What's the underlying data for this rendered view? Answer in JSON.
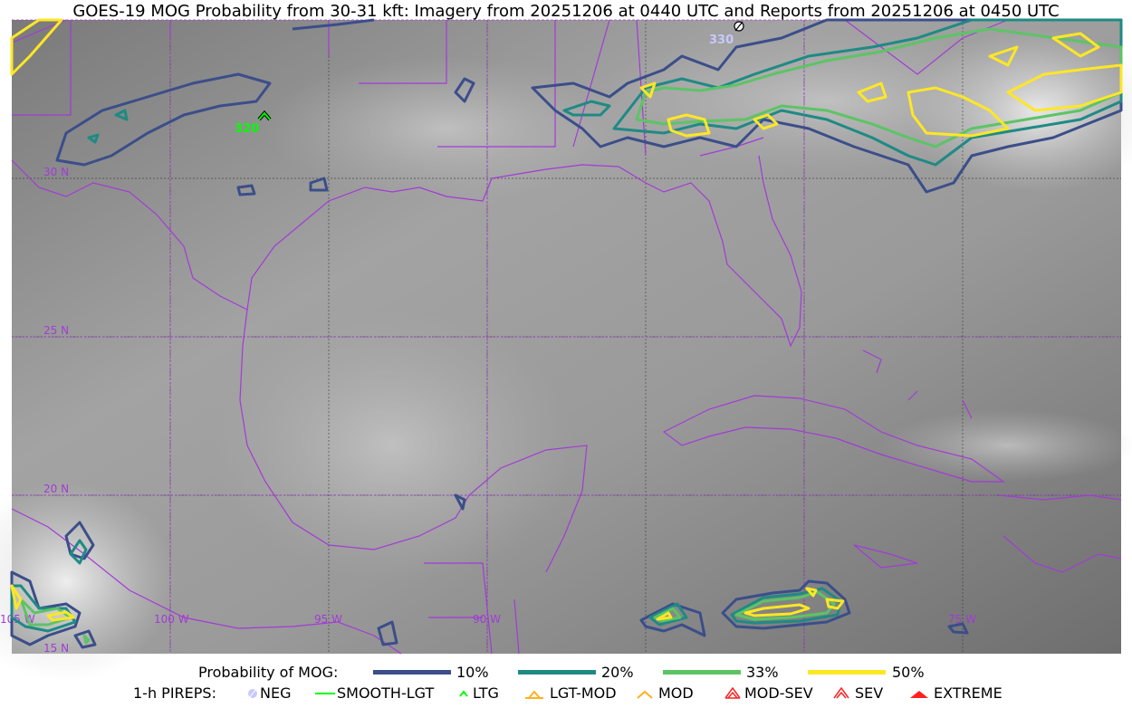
{
  "title": "GOES-19 MOG Probability from 30-31 kft: Imagery from 20251206 at 0440 UTC and Reports from 20251206 at 0450 UTC",
  "map": {
    "lat_labels": [
      "30 N",
      "25 N",
      "20 N",
      "15 N"
    ],
    "lon_labels": [
      "105 W",
      "100 W",
      "95 W",
      "90 W",
      "75 W"
    ],
    "boundary_color": "#a23bd6",
    "pireps": [
      {
        "type": "LTG",
        "altitude": "320",
        "color": "#00ff00"
      },
      {
        "type": "NEG",
        "altitude": "330",
        "color": "#c8c8ff"
      }
    ]
  },
  "legend": {
    "prob_label": "Probability of MOG:",
    "prob_levels": [
      {
        "label": "10%",
        "color": "#3b4e8a"
      },
      {
        "label": "20%",
        "color": "#1f8a84"
      },
      {
        "label": "33%",
        "color": "#5cc465"
      },
      {
        "label": "50%",
        "color": "#fde725"
      }
    ],
    "pirep_label": "1-h PIREPS:",
    "pirep_types": [
      {
        "label": "NEG",
        "icon": "neg-icon",
        "color": "#c8c8ff"
      },
      {
        "label": "SMOOTH-LGT",
        "icon": "smooth-lgt-line-icon",
        "color": "#00ff00"
      },
      {
        "label": "LTG",
        "icon": "ltg-caret-icon",
        "color": "#00ff00"
      },
      {
        "label": "LGT-MOD",
        "icon": "lgt-mod-icon",
        "color": "#ffb020"
      },
      {
        "label": "MOD",
        "icon": "mod-caret-icon",
        "color": "#ffb020"
      },
      {
        "label": "MOD-SEV",
        "icon": "mod-sev-icon",
        "color": "#ff2020"
      },
      {
        "label": "SEV",
        "icon": "sev-icon",
        "color": "#ff2020"
      },
      {
        "label": "EXTREME",
        "icon": "extreme-icon",
        "color": "#ff2020"
      }
    ]
  }
}
